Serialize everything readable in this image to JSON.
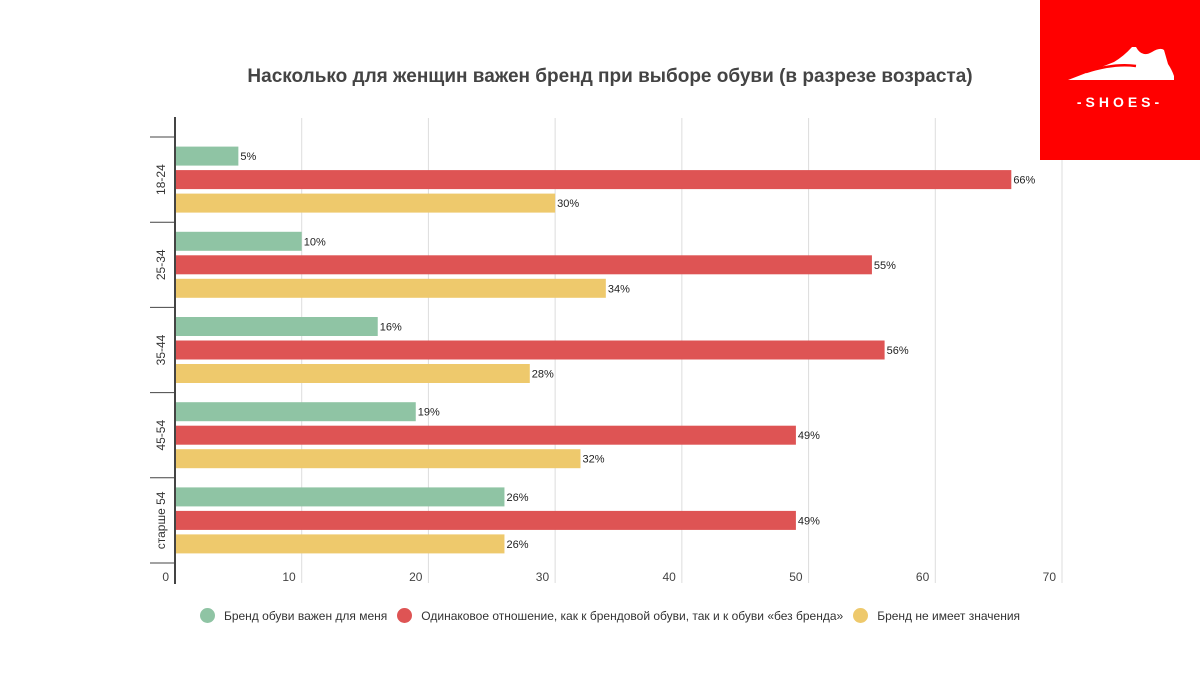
{
  "title": "Насколько для женщин важен бренд при выборе обуви (в разрезе возраста)",
  "logo": {
    "text": "-SHOES-",
    "color": "#ff0000"
  },
  "chart_data": {
    "type": "bar",
    "orientation": "horizontal",
    "title": "Насколько для женщин важен бренд при выборе обуви (в разрезе возраста)",
    "categories": [
      "18-24",
      "25-34",
      "35-44",
      "45-54",
      "старше 54"
    ],
    "series": [
      {
        "name": "Бренд обуви важен для меня",
        "color": "#8fc4a4",
        "values": [
          5,
          10,
          16,
          19,
          26
        ]
      },
      {
        "name": "Одинаковое отношение, как к брендовой обуви, так и к обуви «без бренда»",
        "color": "#de5454",
        "values": [
          66,
          55,
          56,
          49,
          49
        ]
      },
      {
        "name": "Бренд не имеет значения",
        "color": "#eec96c",
        "values": [
          30,
          34,
          28,
          32,
          26
        ]
      }
    ],
    "value_suffix": "%",
    "xlim": [
      0,
      70
    ],
    "xticks": [
      0,
      10,
      20,
      30,
      40,
      50,
      60,
      70
    ],
    "grid": true,
    "legend_position": "bottom"
  }
}
